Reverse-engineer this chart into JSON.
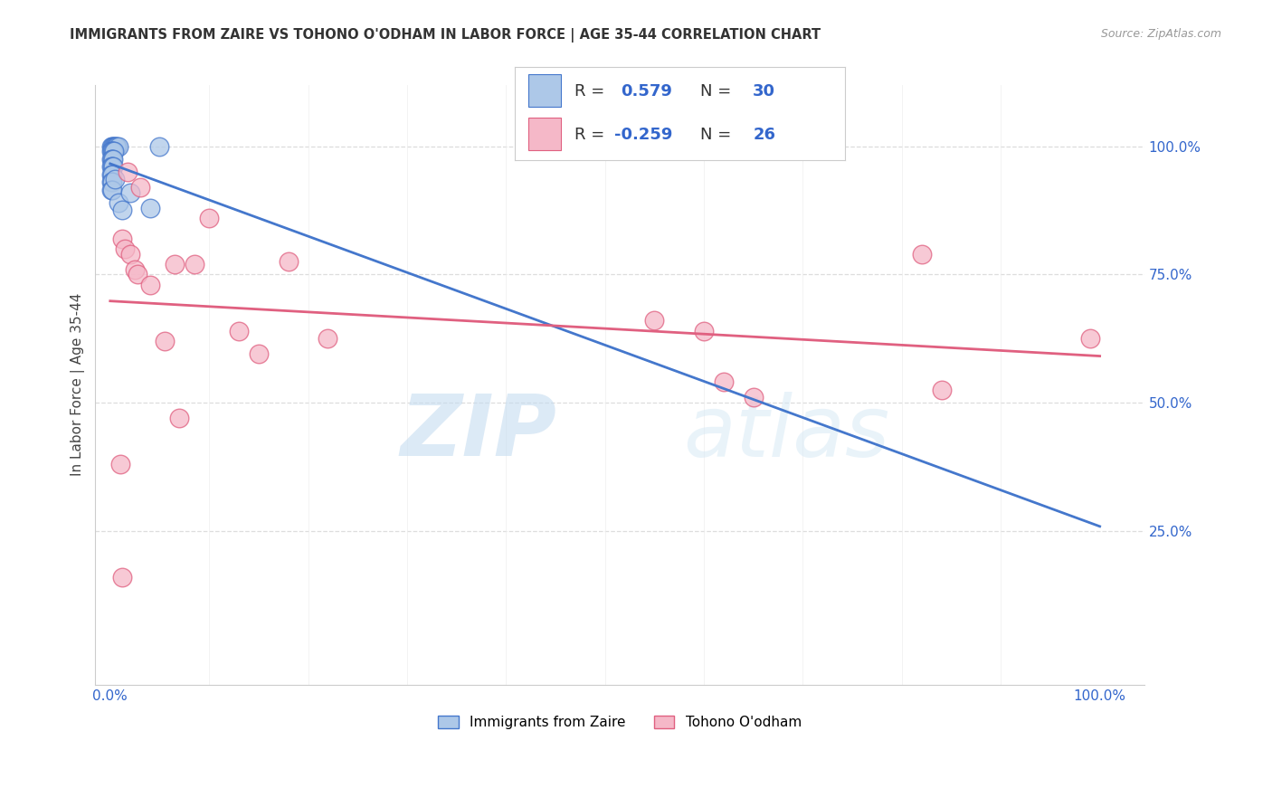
{
  "title": "IMMIGRANTS FROM ZAIRE VS TOHONO O'ODHAM IN LABOR FORCE | AGE 35-44 CORRELATION CHART",
  "source": "Source: ZipAtlas.com",
  "ylabel": "In Labor Force | Age 35-44",
  "legend_zaire_R": "0.579",
  "legend_zaire_N": "30",
  "legend_tohono_R": "-0.259",
  "legend_tohono_N": "26",
  "legend_label_zaire": "Immigrants from Zaire",
  "legend_label_tohono": "Tohono O'odham",
  "zaire_color": "#adc8e8",
  "tohono_color": "#f5b8c8",
  "zaire_line_color": "#4477cc",
  "tohono_line_color": "#e06080",
  "watermark_zip": "ZIP",
  "watermark_atlas": "atlas",
  "background_color": "#ffffff",
  "grid_color": "#dddddd",
  "zaire_points": [
    [
      0.001,
      1.0
    ],
    [
      0.002,
      1.0
    ],
    [
      0.003,
      1.0
    ],
    [
      0.004,
      1.0
    ],
    [
      0.005,
      1.0
    ],
    [
      0.006,
      1.0
    ],
    [
      0.007,
      1.0
    ],
    [
      0.008,
      1.0
    ],
    [
      0.001,
      0.99
    ],
    [
      0.002,
      0.99
    ],
    [
      0.003,
      0.99
    ],
    [
      0.004,
      0.99
    ],
    [
      0.001,
      0.975
    ],
    [
      0.002,
      0.975
    ],
    [
      0.003,
      0.975
    ],
    [
      0.001,
      0.96
    ],
    [
      0.002,
      0.96
    ],
    [
      0.003,
      0.96
    ],
    [
      0.001,
      0.945
    ],
    [
      0.002,
      0.945
    ],
    [
      0.001,
      0.93
    ],
    [
      0.002,
      0.93
    ],
    [
      0.001,
      0.915
    ],
    [
      0.002,
      0.915
    ],
    [
      0.005,
      0.935
    ],
    [
      0.008,
      0.89
    ],
    [
      0.012,
      0.875
    ],
    [
      0.02,
      0.91
    ],
    [
      0.04,
      0.88
    ],
    [
      0.05,
      1.0
    ]
  ],
  "tohono_points": [
    [
      0.012,
      0.82
    ],
    [
      0.015,
      0.8
    ],
    [
      0.018,
      0.95
    ],
    [
      0.02,
      0.79
    ],
    [
      0.025,
      0.76
    ],
    [
      0.028,
      0.75
    ],
    [
      0.03,
      0.92
    ],
    [
      0.04,
      0.73
    ],
    [
      0.055,
      0.62
    ],
    [
      0.065,
      0.77
    ],
    [
      0.07,
      0.47
    ],
    [
      0.085,
      0.77
    ],
    [
      0.1,
      0.86
    ],
    [
      0.13,
      0.64
    ],
    [
      0.15,
      0.595
    ],
    [
      0.18,
      0.775
    ],
    [
      0.22,
      0.625
    ],
    [
      0.01,
      0.38
    ],
    [
      0.012,
      0.16
    ],
    [
      0.55,
      0.66
    ],
    [
      0.6,
      0.64
    ],
    [
      0.62,
      0.54
    ],
    [
      0.65,
      0.51
    ],
    [
      0.82,
      0.79
    ],
    [
      0.84,
      0.525
    ],
    [
      0.99,
      0.625
    ]
  ]
}
